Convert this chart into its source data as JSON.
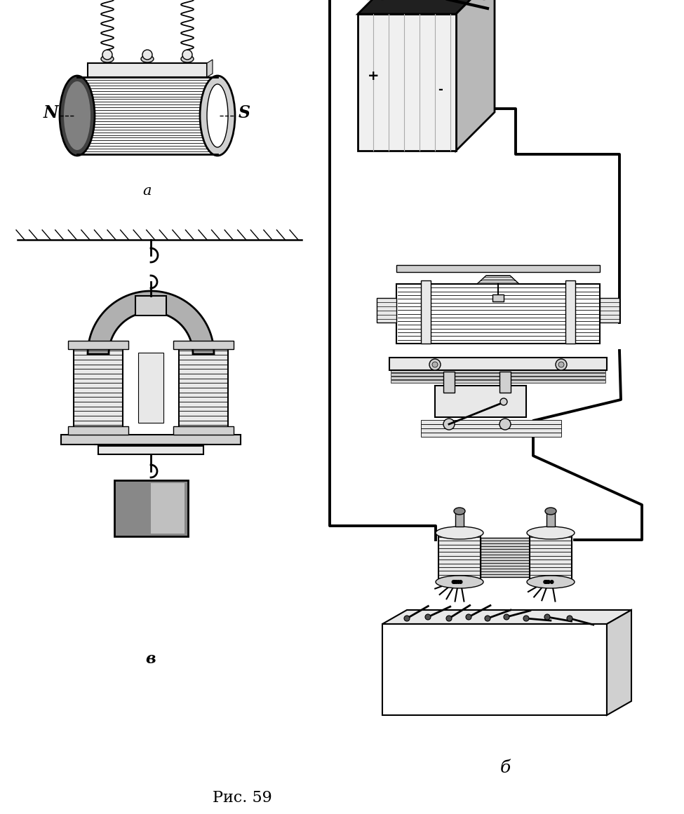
{
  "background_color": "#ffffff",
  "fig_width": 9.75,
  "fig_height": 11.61,
  "dpi": 100,
  "label_a": "a",
  "label_v": "в",
  "label_b": "б",
  "label_N": "N",
  "label_S": "S",
  "caption": "Рис. 59",
  "text_color": "#000000"
}
